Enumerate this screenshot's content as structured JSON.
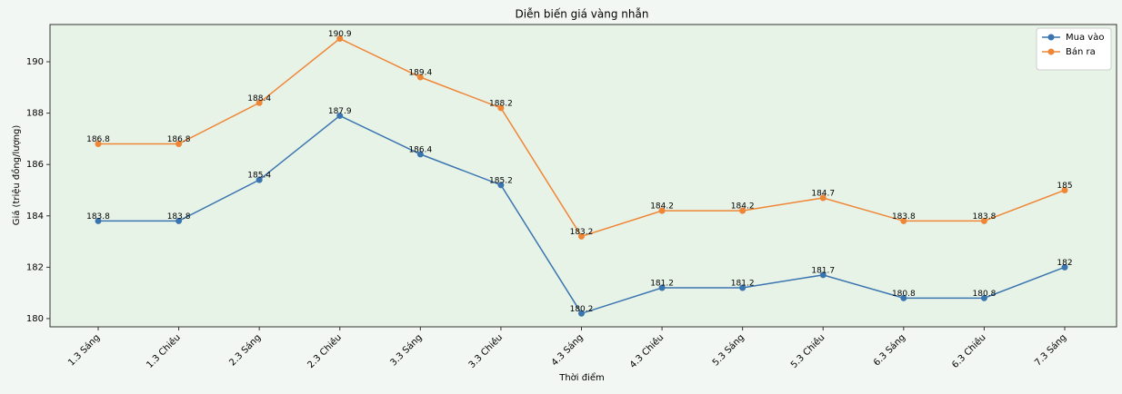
{
  "chart_data": {
    "type": "line",
    "title": "Diễn biến giá vàng nhẫn",
    "x_label": "Thời điểm",
    "y_label": "Giá (triệu đồng/lượng)",
    "categories": [
      "1.3 Sáng",
      "1.3 Chiều",
      "2.3 Sáng",
      "2.3 Chiều",
      "3.3 Sáng",
      "3.3 Chiều",
      "4.3 Sáng",
      "4.3 Chiều",
      "5.3 Sáng",
      "5.3 Chiều",
      "6.3 Sáng",
      "6.3 Chiều",
      "7.3 Sáng"
    ],
    "series": [
      {
        "name": "Mua vào",
        "color": "#3a75af",
        "values": [
          183.8,
          183.8,
          185.4,
          187.9,
          186.4,
          185.2,
          180.2,
          181.2,
          181.2,
          181.7,
          180.8,
          180.8,
          182
        ]
      },
      {
        "name": "Bán ra",
        "color": "#ef8636",
        "values": [
          186.8,
          186.8,
          188.4,
          190.9,
          189.4,
          188.2,
          183.2,
          184.2,
          184.2,
          184.7,
          183.8,
          183.8,
          185
        ]
      }
    ],
    "ylim": [
      179.68,
      191.45
    ],
    "yticks": [
      180,
      182,
      184,
      186,
      188,
      190
    ],
    "legend": "upper right",
    "data_labels": true
  }
}
